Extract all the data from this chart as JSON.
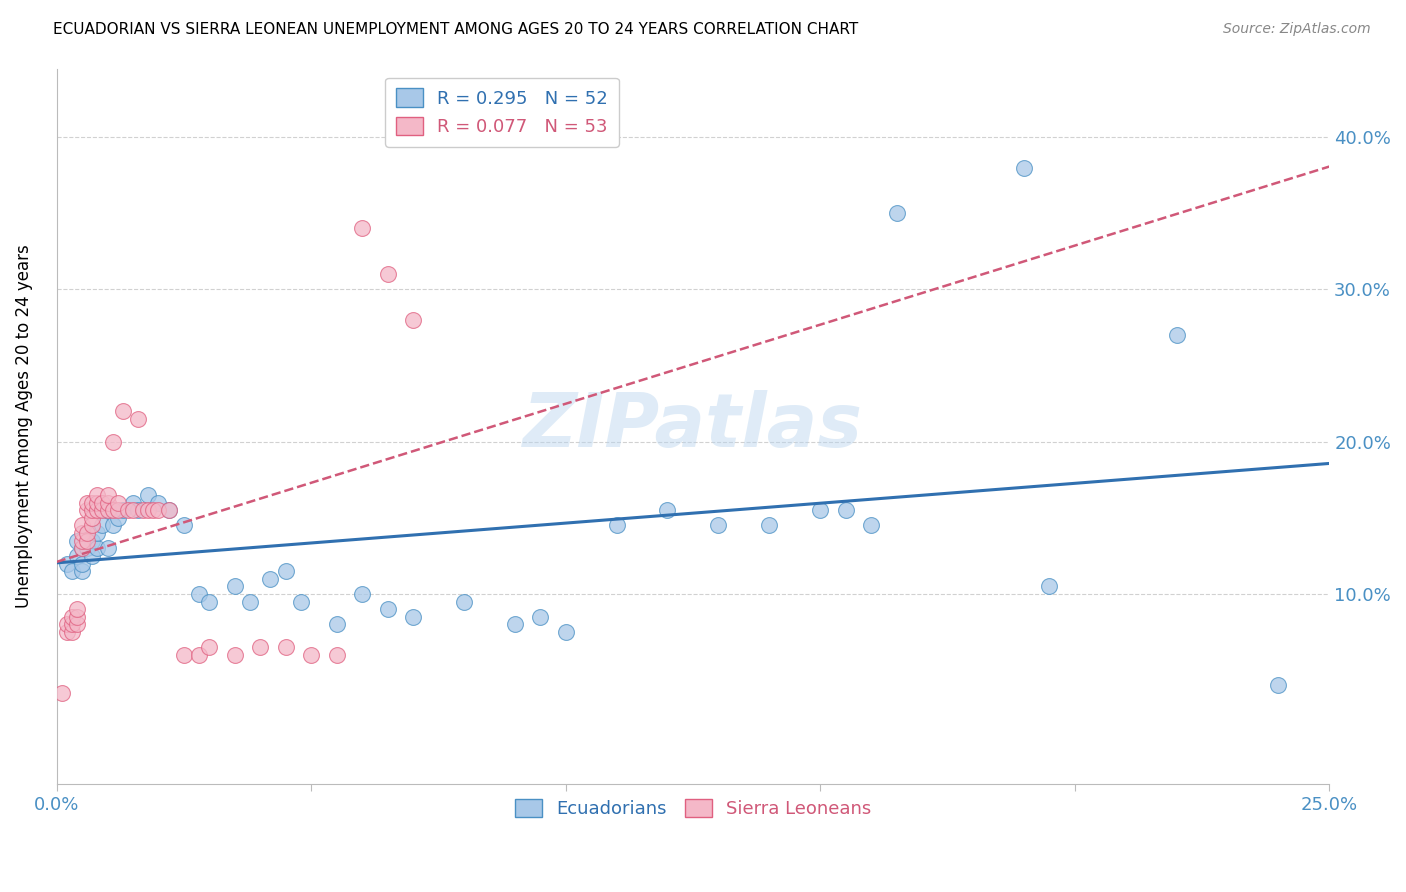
{
  "title": "ECUADORIAN VS SIERRA LEONEAN UNEMPLOYMENT AMONG AGES 20 TO 24 YEARS CORRELATION CHART",
  "source": "Source: ZipAtlas.com",
  "ylabel": "Unemployment Among Ages 20 to 24 years",
  "xlim": [
    0.0,
    0.25
  ],
  "ylim": [
    -0.025,
    0.445
  ],
  "yticks": [
    0.1,
    0.2,
    0.3,
    0.4
  ],
  "ytick_labels": [
    "10.0%",
    "20.0%",
    "30.0%",
    "40.0%"
  ],
  "xticks": [
    0.0,
    0.05,
    0.1,
    0.15,
    0.2,
    0.25
  ],
  "xtick_labels": [
    "0.0%",
    "",
    "",
    "",
    "",
    "25.0%"
  ],
  "blue_R": 0.295,
  "blue_N": 52,
  "pink_R": 0.077,
  "pink_N": 53,
  "blue_color": "#a8c8e8",
  "pink_color": "#f4b8c8",
  "blue_edge_color": "#4a90c4",
  "pink_edge_color": "#e06080",
  "blue_line_color": "#3070b0",
  "pink_line_color": "#d05878",
  "axis_label_color": "#4a90c4",
  "watermark": "ZIPatlas",
  "blue_scatter_x": [
    0.002,
    0.003,
    0.004,
    0.004,
    0.005,
    0.005,
    0.005,
    0.006,
    0.006,
    0.007,
    0.007,
    0.008,
    0.008,
    0.009,
    0.01,
    0.01,
    0.011,
    0.012,
    0.013,
    0.015,
    0.016,
    0.018,
    0.02,
    0.022,
    0.025,
    0.028,
    0.03,
    0.035,
    0.038,
    0.042,
    0.045,
    0.048,
    0.055,
    0.06,
    0.065,
    0.07,
    0.08,
    0.09,
    0.095,
    0.1,
    0.11,
    0.12,
    0.13,
    0.14,
    0.15,
    0.155,
    0.16,
    0.165,
    0.19,
    0.195,
    0.22,
    0.24
  ],
  "blue_scatter_y": [
    0.12,
    0.115,
    0.125,
    0.135,
    0.13,
    0.115,
    0.12,
    0.13,
    0.14,
    0.135,
    0.125,
    0.13,
    0.14,
    0.145,
    0.13,
    0.155,
    0.145,
    0.15,
    0.155,
    0.16,
    0.155,
    0.165,
    0.16,
    0.155,
    0.145,
    0.1,
    0.095,
    0.105,
    0.095,
    0.11,
    0.115,
    0.095,
    0.08,
    0.1,
    0.09,
    0.085,
    0.095,
    0.08,
    0.085,
    0.075,
    0.145,
    0.155,
    0.145,
    0.145,
    0.155,
    0.155,
    0.145,
    0.35,
    0.38,
    0.105,
    0.27,
    0.04
  ],
  "pink_scatter_x": [
    0.001,
    0.002,
    0.002,
    0.003,
    0.003,
    0.003,
    0.004,
    0.004,
    0.004,
    0.005,
    0.005,
    0.005,
    0.005,
    0.006,
    0.006,
    0.006,
    0.006,
    0.007,
    0.007,
    0.007,
    0.007,
    0.008,
    0.008,
    0.008,
    0.009,
    0.009,
    0.01,
    0.01,
    0.01,
    0.011,
    0.011,
    0.012,
    0.012,
    0.013,
    0.014,
    0.015,
    0.016,
    0.017,
    0.018,
    0.019,
    0.02,
    0.022,
    0.025,
    0.028,
    0.03,
    0.035,
    0.04,
    0.045,
    0.05,
    0.055,
    0.06,
    0.065,
    0.07
  ],
  "pink_scatter_y": [
    0.035,
    0.075,
    0.08,
    0.075,
    0.08,
    0.085,
    0.08,
    0.085,
    0.09,
    0.13,
    0.135,
    0.14,
    0.145,
    0.135,
    0.14,
    0.155,
    0.16,
    0.145,
    0.15,
    0.155,
    0.16,
    0.155,
    0.16,
    0.165,
    0.155,
    0.16,
    0.155,
    0.16,
    0.165,
    0.155,
    0.2,
    0.155,
    0.16,
    0.22,
    0.155,
    0.155,
    0.215,
    0.155,
    0.155,
    0.155,
    0.155,
    0.155,
    0.06,
    0.06,
    0.065,
    0.06,
    0.065,
    0.065,
    0.06,
    0.06,
    0.34,
    0.31,
    0.28
  ]
}
